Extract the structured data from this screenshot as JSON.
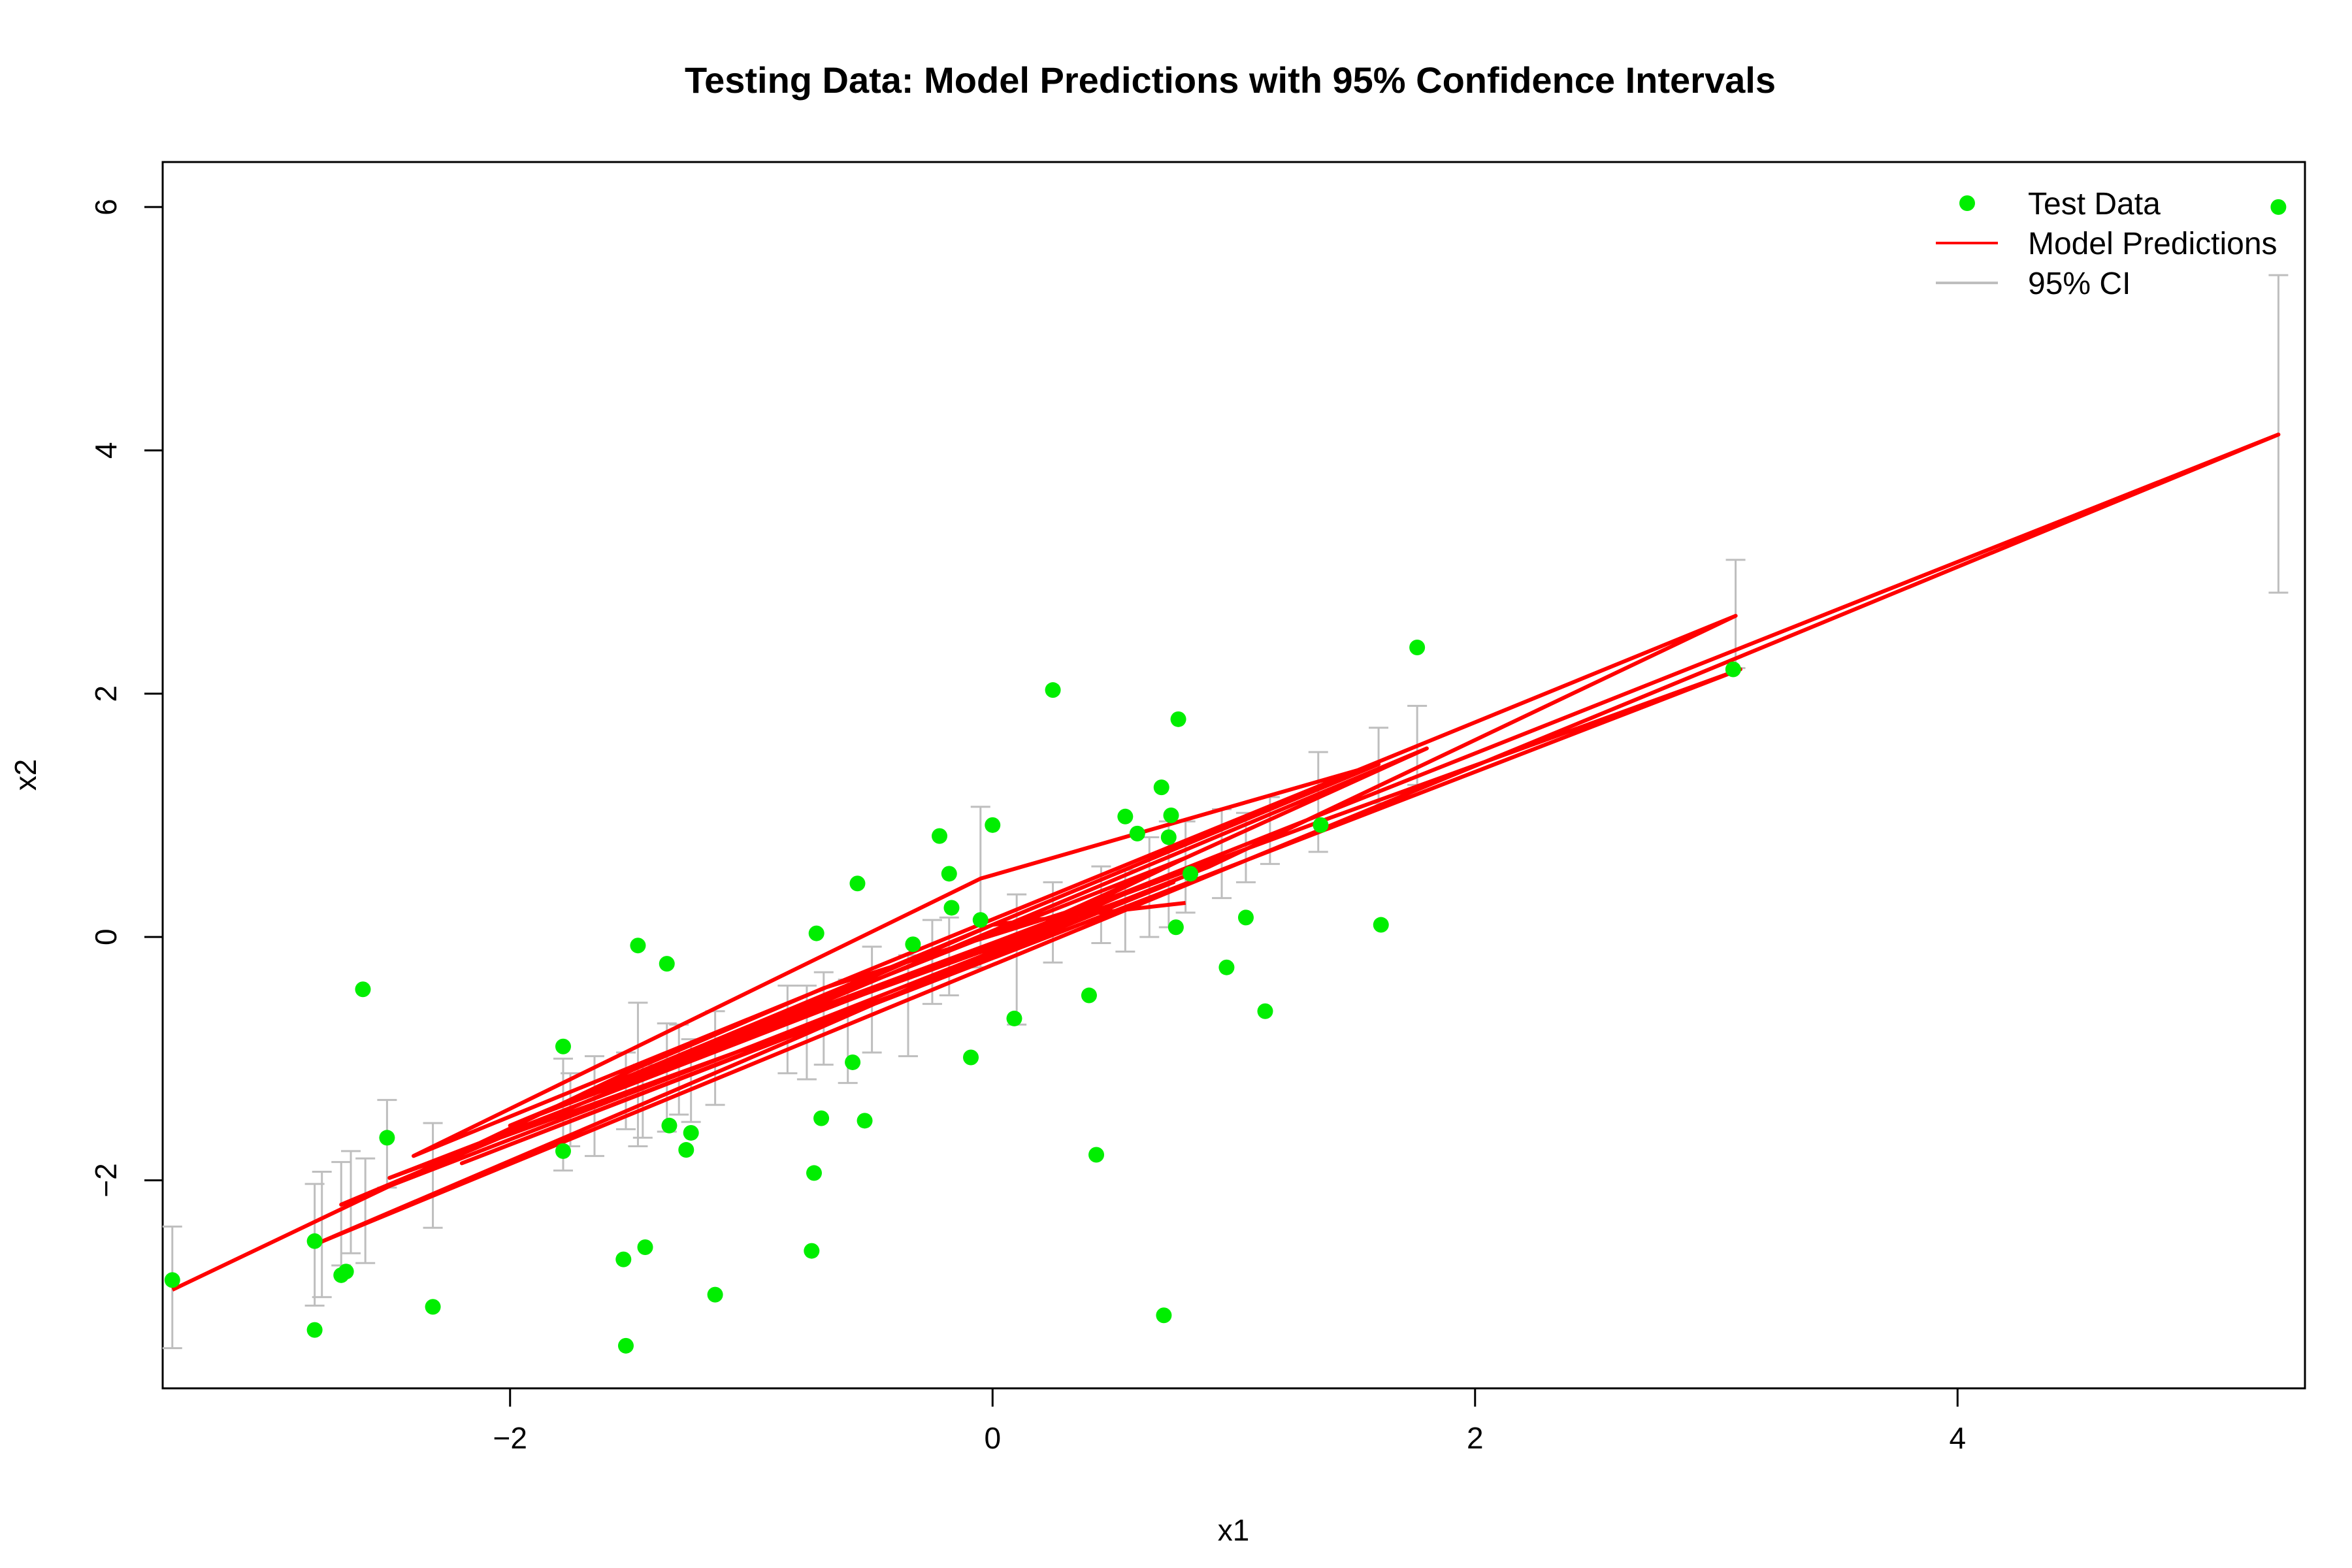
{
  "chart_data": {
    "type": "scatter",
    "title": "Testing Data: Model Predictions with 95% Confidence Intervals",
    "xlabel": "x1",
    "ylabel": "x2",
    "xlim": [
      -3.44,
      5.44
    ],
    "ylim": [
      -3.71,
      6.37
    ],
    "xticks": [
      -2,
      0,
      2,
      4
    ],
    "yticks": [
      -2,
      0,
      2,
      4,
      6
    ],
    "xtick_labels": [
      "−2",
      "0",
      "2",
      "4"
    ],
    "ytick_labels": [
      "−2",
      "0",
      "2",
      "4",
      "6"
    ],
    "grid": false,
    "legend_position": "top-right",
    "colors": {
      "test_data": "#00ee00",
      "prediction": "#ff0000",
      "ci": "#bebebe",
      "axis": "#000000"
    },
    "series": [
      {
        "name": "Test Data",
        "kind": "points",
        "points": [
          [
            -3.4,
            -2.82
          ],
          [
            -2.81,
            -2.5
          ],
          [
            -2.81,
            -3.23
          ],
          [
            -2.7,
            -2.78
          ],
          [
            -2.68,
            -2.75
          ],
          [
            -2.61,
            -0.43
          ],
          [
            -2.51,
            -1.65
          ],
          [
            -2.32,
            -3.04
          ],
          [
            -1.78,
            -0.9
          ],
          [
            -1.78,
            -1.76
          ],
          [
            -1.53,
            -2.65
          ],
          [
            -1.52,
            -3.36
          ],
          [
            -1.47,
            -0.07
          ],
          [
            -1.44,
            -2.55
          ],
          [
            -1.35,
            -0.22
          ],
          [
            -1.34,
            -1.55
          ],
          [
            -1.27,
            -1.75
          ],
          [
            -1.25,
            -1.61
          ],
          [
            -1.15,
            -2.94
          ],
          [
            -0.75,
            -2.58
          ],
          [
            -0.74,
            -1.94
          ],
          [
            -0.73,
            0.03
          ],
          [
            -0.71,
            -1.49
          ],
          [
            -0.58,
            -1.03
          ],
          [
            -0.56,
            0.44
          ],
          [
            -0.53,
            -1.51
          ],
          [
            -0.33,
            -0.06
          ],
          [
            -0.22,
            0.83
          ],
          [
            -0.18,
            0.52
          ],
          [
            -0.17,
            0.24
          ],
          [
            -0.09,
            -0.99
          ],
          [
            -0.05,
            0.14
          ],
          [
            0.0,
            0.92
          ],
          [
            0.09,
            -0.67
          ],
          [
            0.25,
            2.03
          ],
          [
            0.4,
            -0.48
          ],
          [
            0.43,
            -1.79
          ],
          [
            0.55,
            0.99
          ],
          [
            0.6,
            0.85
          ],
          [
            0.7,
            1.23
          ],
          [
            0.71,
            -3.11
          ],
          [
            0.73,
            0.82
          ],
          [
            0.74,
            1.0
          ],
          [
            0.76,
            0.08
          ],
          [
            0.77,
            1.79
          ],
          [
            0.82,
            0.52
          ],
          [
            0.97,
            -0.25
          ],
          [
            1.05,
            0.16
          ],
          [
            1.13,
            -0.61
          ],
          [
            1.36,
            0.92
          ],
          [
            1.61,
            0.1
          ],
          [
            1.76,
            2.38
          ],
          [
            3.07,
            2.2
          ],
          [
            5.33,
            6.0
          ]
        ]
      },
      {
        "name": "Model Predictions",
        "kind": "line",
        "points": [
          [
            -3.4,
            -2.9
          ],
          [
            -1.5,
            -1.1
          ],
          [
            -0.7,
            -0.42
          ],
          [
            0.3,
            0.2
          ],
          [
            1.8,
            1.55
          ],
          [
            -2.7,
            -2.2
          ],
          [
            -1.0,
            -0.9
          ],
          [
            0.9,
            0.58
          ],
          [
            3.08,
            2.64
          ],
          [
            -2.4,
            -1.8
          ],
          [
            -0.05,
            0.48
          ],
          [
            1.6,
            1.42
          ],
          [
            -2.0,
            -1.55
          ],
          [
            0.4,
            0.25
          ],
          [
            5.33,
            4.13
          ],
          [
            -2.8,
            -2.52
          ],
          [
            -0.8,
            -0.82
          ],
          [
            0.6,
            0.4
          ],
          [
            -2.5,
            -1.98
          ],
          [
            -0.3,
            -0.4
          ],
          [
            0.8,
            0.65
          ],
          [
            -1.7,
            -1.3
          ],
          [
            1.4,
            0.98
          ],
          [
            3.1,
            2.2
          ],
          [
            -2.2,
            -1.86
          ],
          [
            -0.5,
            -0.55
          ],
          [
            0.75,
            0.45
          ],
          [
            -1.3,
            -1.02
          ],
          [
            0.0,
            0.1
          ],
          [
            0.8,
            0.28
          ]
        ]
      },
      {
        "name": "95% CI",
        "kind": "errorbars",
        "bars": [
          [
            -3.4,
            -3.38,
            -2.38
          ],
          [
            -2.81,
            -3.03,
            -2.03
          ],
          [
            -2.78,
            -2.96,
            -1.93
          ],
          [
            -2.7,
            -2.7,
            -1.85
          ],
          [
            -2.66,
            -2.6,
            -1.76
          ],
          [
            -2.6,
            -2.68,
            -1.82
          ],
          [
            -2.51,
            -2.06,
            -1.34
          ],
          [
            -2.32,
            -2.39,
            -1.53
          ],
          [
            -1.78,
            -1.92,
            -1.0
          ],
          [
            -1.75,
            -1.72,
            -1.12
          ],
          [
            -1.65,
            -1.8,
            -0.98
          ],
          [
            -1.52,
            -1.58,
            -0.95
          ],
          [
            -1.47,
            -1.72,
            -0.54
          ],
          [
            -1.45,
            -1.65,
            -1.05
          ],
          [
            -1.35,
            -1.6,
            -0.71
          ],
          [
            -1.3,
            -1.46,
            -0.72
          ],
          [
            -1.25,
            -1.52,
            -0.84
          ],
          [
            -1.15,
            -1.38,
            -0.61
          ],
          [
            -0.85,
            -1.12,
            -0.4
          ],
          [
            -0.77,
            -1.17,
            -0.4
          ],
          [
            -0.7,
            -1.05,
            -0.29
          ],
          [
            -0.6,
            -1.2,
            -0.35
          ],
          [
            -0.5,
            -0.95,
            -0.08
          ],
          [
            -0.35,
            -0.98,
            -0.15
          ],
          [
            -0.25,
            -0.55,
            0.14
          ],
          [
            -0.18,
            -0.48,
            0.16
          ],
          [
            -0.05,
            -0.25,
            1.07
          ],
          [
            0.1,
            -0.72,
            0.35
          ],
          [
            0.25,
            -0.21,
            0.45
          ],
          [
            0.45,
            -0.05,
            0.58
          ],
          [
            0.55,
            -0.12,
            0.55
          ],
          [
            0.65,
            0.0,
            0.82
          ],
          [
            0.73,
            0.08,
            0.95
          ],
          [
            0.8,
            0.2,
            0.95
          ],
          [
            0.95,
            0.32,
            1.05
          ],
          [
            1.05,
            0.45,
            1.02
          ],
          [
            1.15,
            0.6,
            1.15
          ],
          [
            1.35,
            0.7,
            1.52
          ],
          [
            1.6,
            1.1,
            1.72
          ],
          [
            1.76,
            1.25,
            1.9
          ],
          [
            3.08,
            2.21,
            3.1
          ],
          [
            5.33,
            2.83,
            5.44
          ]
        ]
      }
    ],
    "legend": {
      "labels": [
        "Test Data",
        "Model Predictions",
        "95% CI"
      ]
    }
  }
}
